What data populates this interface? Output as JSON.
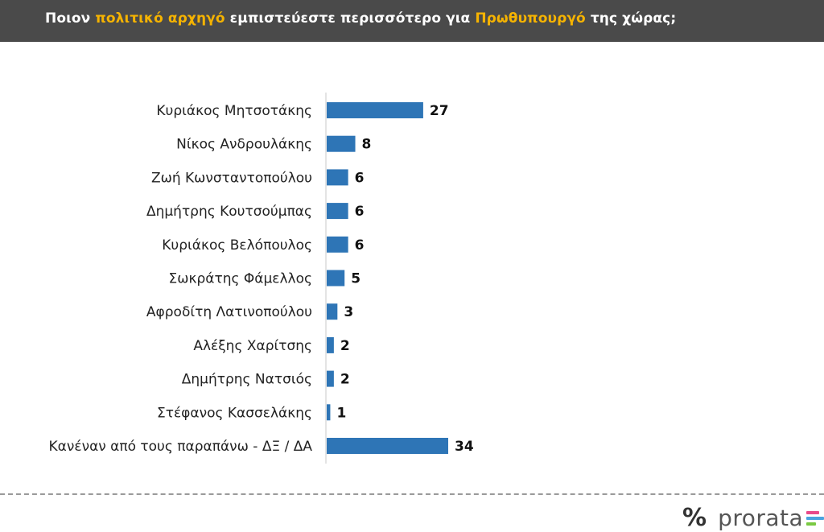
{
  "header": {
    "title_parts": [
      {
        "text": "Ποιον ",
        "highlight": false
      },
      {
        "text": "πολιτικό αρχηγό",
        "highlight": true
      },
      {
        "text": " εμπιστεύεστε περισσότερο για ",
        "highlight": false
      },
      {
        "text": "Πρωθυπουργό",
        "highlight": true
      },
      {
        "text": " της χώρας;",
        "highlight": false
      }
    ],
    "background": "#4a4a4a",
    "highlight_color": "#f5b301"
  },
  "chart_data": {
    "type": "bar",
    "orientation": "horizontal",
    "title": "Ποιον πολιτικό αρχηγό εμπιστεύεστε περισσότερο για Πρωθυπουργό της χώρας;",
    "categories": [
      "Κυριάκος Μητσοτάκης",
      "Νίκος Ανδρουλάκης",
      "Ζωή Κωνσταντοπούλου",
      "Δημήτρης Κουτσούμπας",
      "Κυριάκος Βελόπουλος",
      "Σωκράτης Φάμελλος",
      "Αφροδίτη Λατινοπούλου",
      "Αλέξης Χαρίτσης",
      "Δημήτρης Νατσιός",
      "Στέφανος Κασσελάκης",
      "Κανέναν από τους παραπάνω - ΔΞ / ΔΑ"
    ],
    "values": [
      27,
      8,
      6,
      6,
      6,
      5,
      3,
      2,
      2,
      1,
      34
    ],
    "bar_color": "#2e75b6",
    "grid": false,
    "xlim": [
      0,
      34
    ]
  },
  "footer": {
    "brand": "prorata",
    "icon": "percent-icon",
    "brand_bar_colors": [
      "#e84a8a",
      "#4aa3df",
      "#7ac943"
    ]
  }
}
